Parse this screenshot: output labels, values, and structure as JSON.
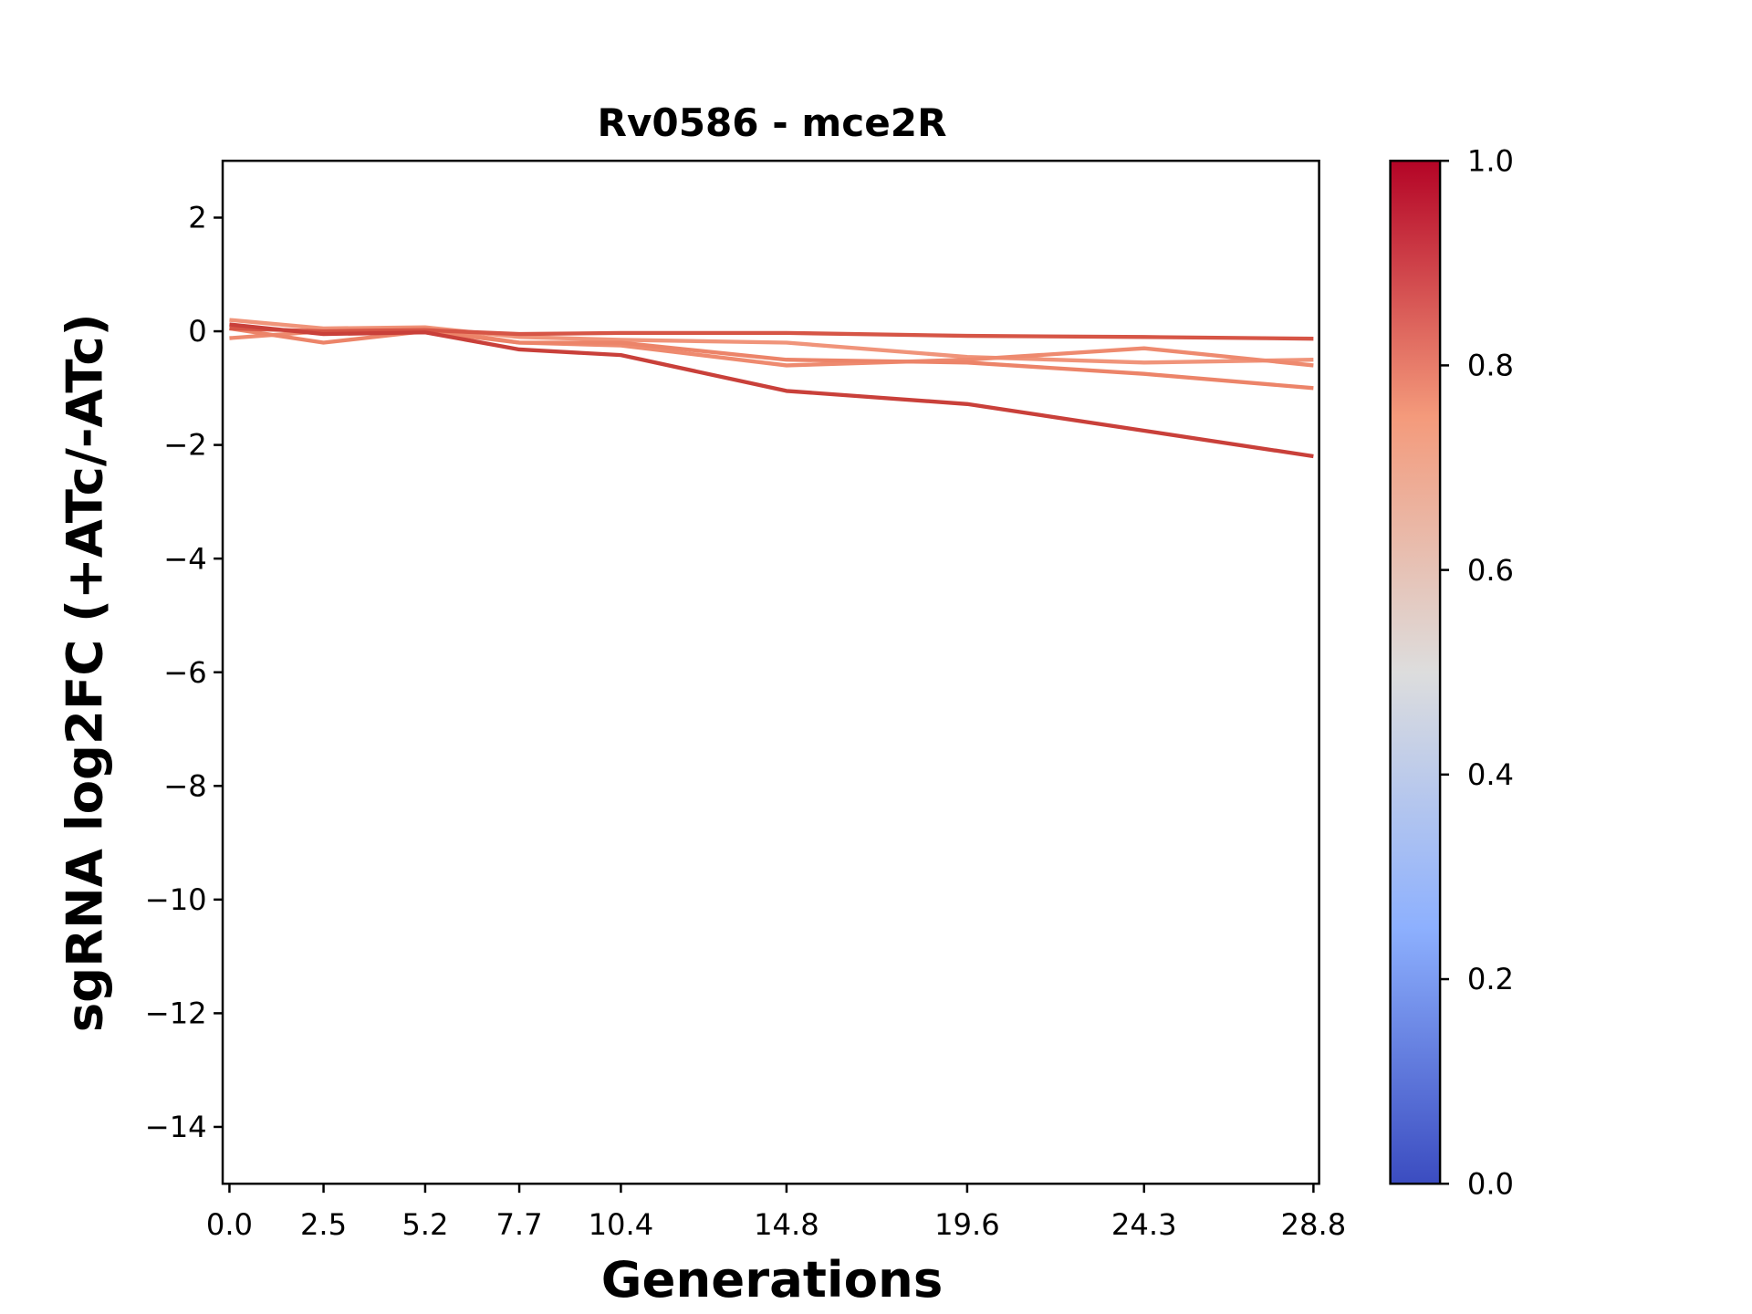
{
  "chart_data": {
    "type": "line",
    "title": "Rv0586 - mce2R",
    "xlabel": "Generations",
    "ylabel": "sgRNA log2FC (+ATc/-ATc)",
    "xlim": [
      -0.18,
      28.95
    ],
    "ylim": [
      -15,
      3
    ],
    "grid": false,
    "x": [
      0.0,
      2.5,
      5.2,
      7.7,
      10.4,
      14.8,
      19.6,
      24.3,
      28.8
    ],
    "xtick_labels": [
      "0.0",
      "2.5",
      "5.2",
      "7.7",
      "10.4",
      "14.8",
      "19.6",
      "24.3",
      "28.8"
    ],
    "yticks": [
      2,
      0,
      -2,
      -4,
      -6,
      -8,
      -10,
      -12,
      -14
    ],
    "ytick_labels": [
      "2",
      "0",
      "−2",
      "−4",
      "−6",
      "−8",
      "−10",
      "−12",
      "−14"
    ],
    "series": [
      {
        "color": "#f0947a",
        "values": [
          0.2,
          0.05,
          0.07,
          -0.1,
          -0.15,
          -0.2,
          -0.45,
          -0.55,
          -0.5
        ]
      },
      {
        "color": "#ee8a6f",
        "values": [
          -0.12,
          0.0,
          0.05,
          -0.2,
          -0.25,
          -0.6,
          -0.5,
          -0.3,
          -0.6
        ]
      },
      {
        "color": "#ec8469",
        "values": [
          0.05,
          -0.2,
          0.0,
          -0.2,
          -0.2,
          -0.5,
          -0.55,
          -0.75,
          -1.0
        ]
      },
      {
        "color": "#d65546",
        "values": [
          0.05,
          0.0,
          0.02,
          -0.05,
          -0.03,
          -0.03,
          -0.08,
          -0.1,
          -0.13
        ]
      },
      {
        "color": "#c9403a",
        "values": [
          0.12,
          -0.05,
          -0.02,
          -0.32,
          -0.42,
          -1.05,
          -1.28,
          -1.75,
          -2.2
        ]
      }
    ],
    "colorbar": {
      "colormap": "coolwarm",
      "range": [
        0,
        1
      ],
      "ticks": [
        0.0,
        0.2,
        0.4,
        0.6,
        0.8,
        1.0
      ],
      "tick_labels": [
        "0.0",
        "0.2",
        "0.4",
        "0.6",
        "0.8",
        "1.0"
      ],
      "stops": [
        "#3b4cc0",
        "#8db0fe",
        "#dddddd",
        "#f49a7b",
        "#b40426"
      ]
    }
  }
}
